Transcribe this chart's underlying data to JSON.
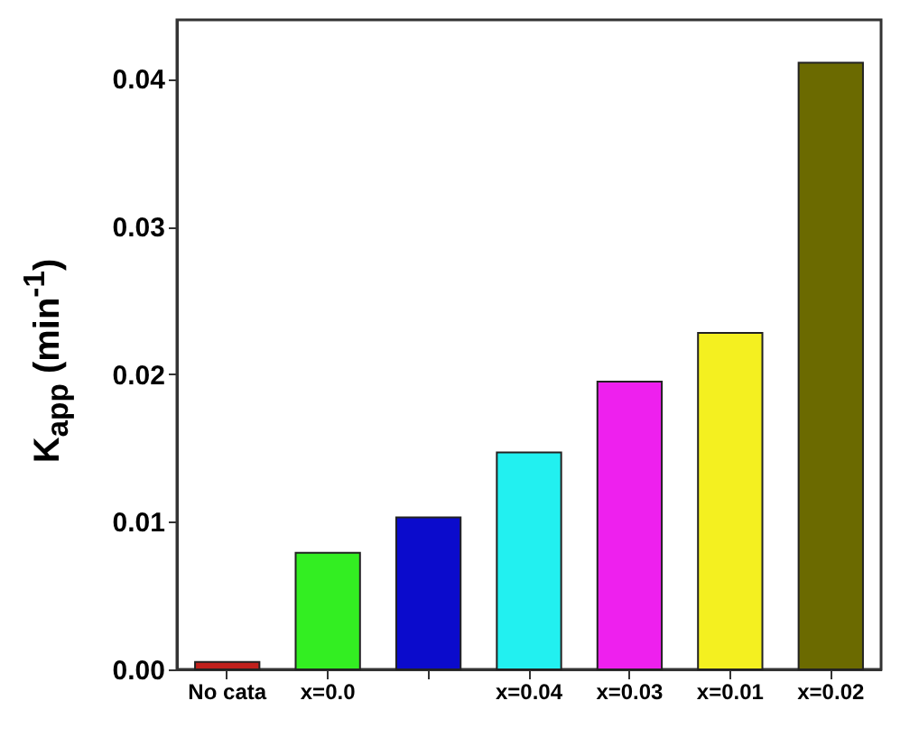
{
  "chart_data": {
    "type": "bar",
    "ylabel": "K$_{app}$ (min$^{-1}$)",
    "categories": [
      "No cata",
      "x=0.0",
      null,
      "x=0.04",
      "x=0.03",
      "x=0.01",
      "x=0.02"
    ],
    "values": [
      0.0005,
      0.0079,
      0.0103,
      0.0147,
      0.0195,
      0.0228,
      0.0411
    ],
    "colors": [
      "#c0201c",
      "#33ee22",
      "#0b0bcc",
      "#22f0f0",
      "#ee20ee",
      "#f4f020",
      "#6b6a00"
    ],
    "ylim": [
      0,
      0.044
    ],
    "yticks": [
      {
        "value": 0,
        "label": "0.00"
      },
      {
        "value": 0.01,
        "label": "0.01"
      },
      {
        "value": 0.02,
        "label": "0.02"
      },
      {
        "value": 0.03,
        "label": "0.03"
      },
      {
        "value": 0.04,
        "label": "0.04"
      }
    ],
    "grid": false
  }
}
